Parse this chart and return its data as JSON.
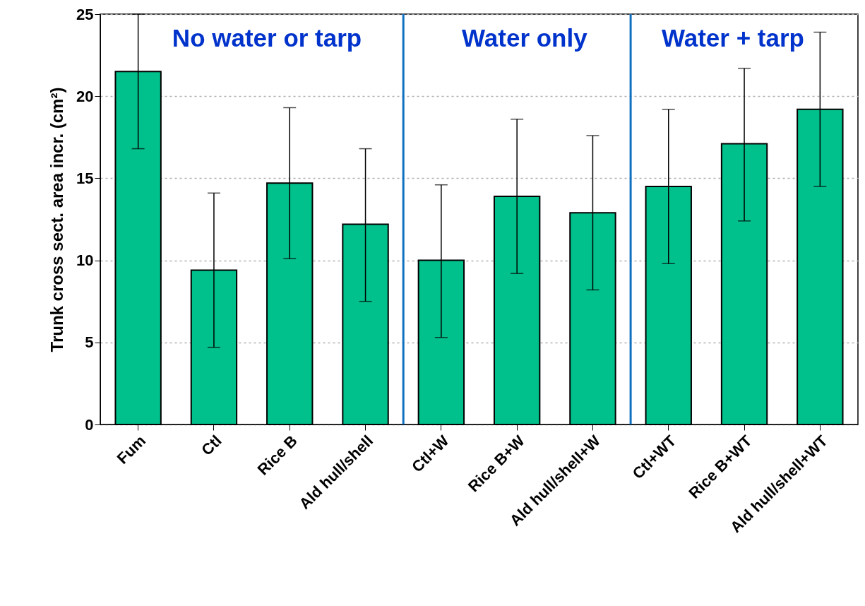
{
  "chart_data": {
    "type": "bar",
    "ylabel": "Trunk cross sect. area incr. (cm²)",
    "categories": [
      "Fum",
      "Ctl",
      "Rice B",
      "Ald hull/shell",
      "Ctl+W",
      "Rice B+W",
      "Ald hull/shell+W",
      "Ctl+WT",
      "Rice B+WT",
      "Ald hull/shell+WT"
    ],
    "values": [
      21.5,
      9.4,
      14.7,
      12.2,
      10.0,
      13.9,
      12.9,
      14.5,
      17.1,
      19.2
    ],
    "errors": [
      [
        16.8,
        25
      ],
      [
        4.7,
        14.1
      ],
      [
        10.1,
        19.3
      ],
      [
        7.5,
        16.8
      ],
      [
        5.3,
        14.6
      ],
      [
        9.2,
        18.6
      ],
      [
        8.2,
        17.6
      ],
      [
        9.8,
        19.2
      ],
      [
        12.4,
        21.7
      ],
      [
        14.5,
        23.9
      ]
    ],
    "color": "#00c08b",
    "ref_lines": [
      {
        "axis": "x",
        "value": "Ctl+W",
        "color": "#1070c0"
      },
      {
        "axis": "x",
        "value": "Ctl+WT",
        "color": "#1070c0"
      }
    ],
    "ylim": [
      0,
      25
    ],
    "yticks": [
      0,
      5,
      10,
      15,
      20,
      25
    ],
    "grid": "y",
    "annotations": [
      "No water or tarp",
      "Water only",
      "Water + tarp"
    ]
  }
}
